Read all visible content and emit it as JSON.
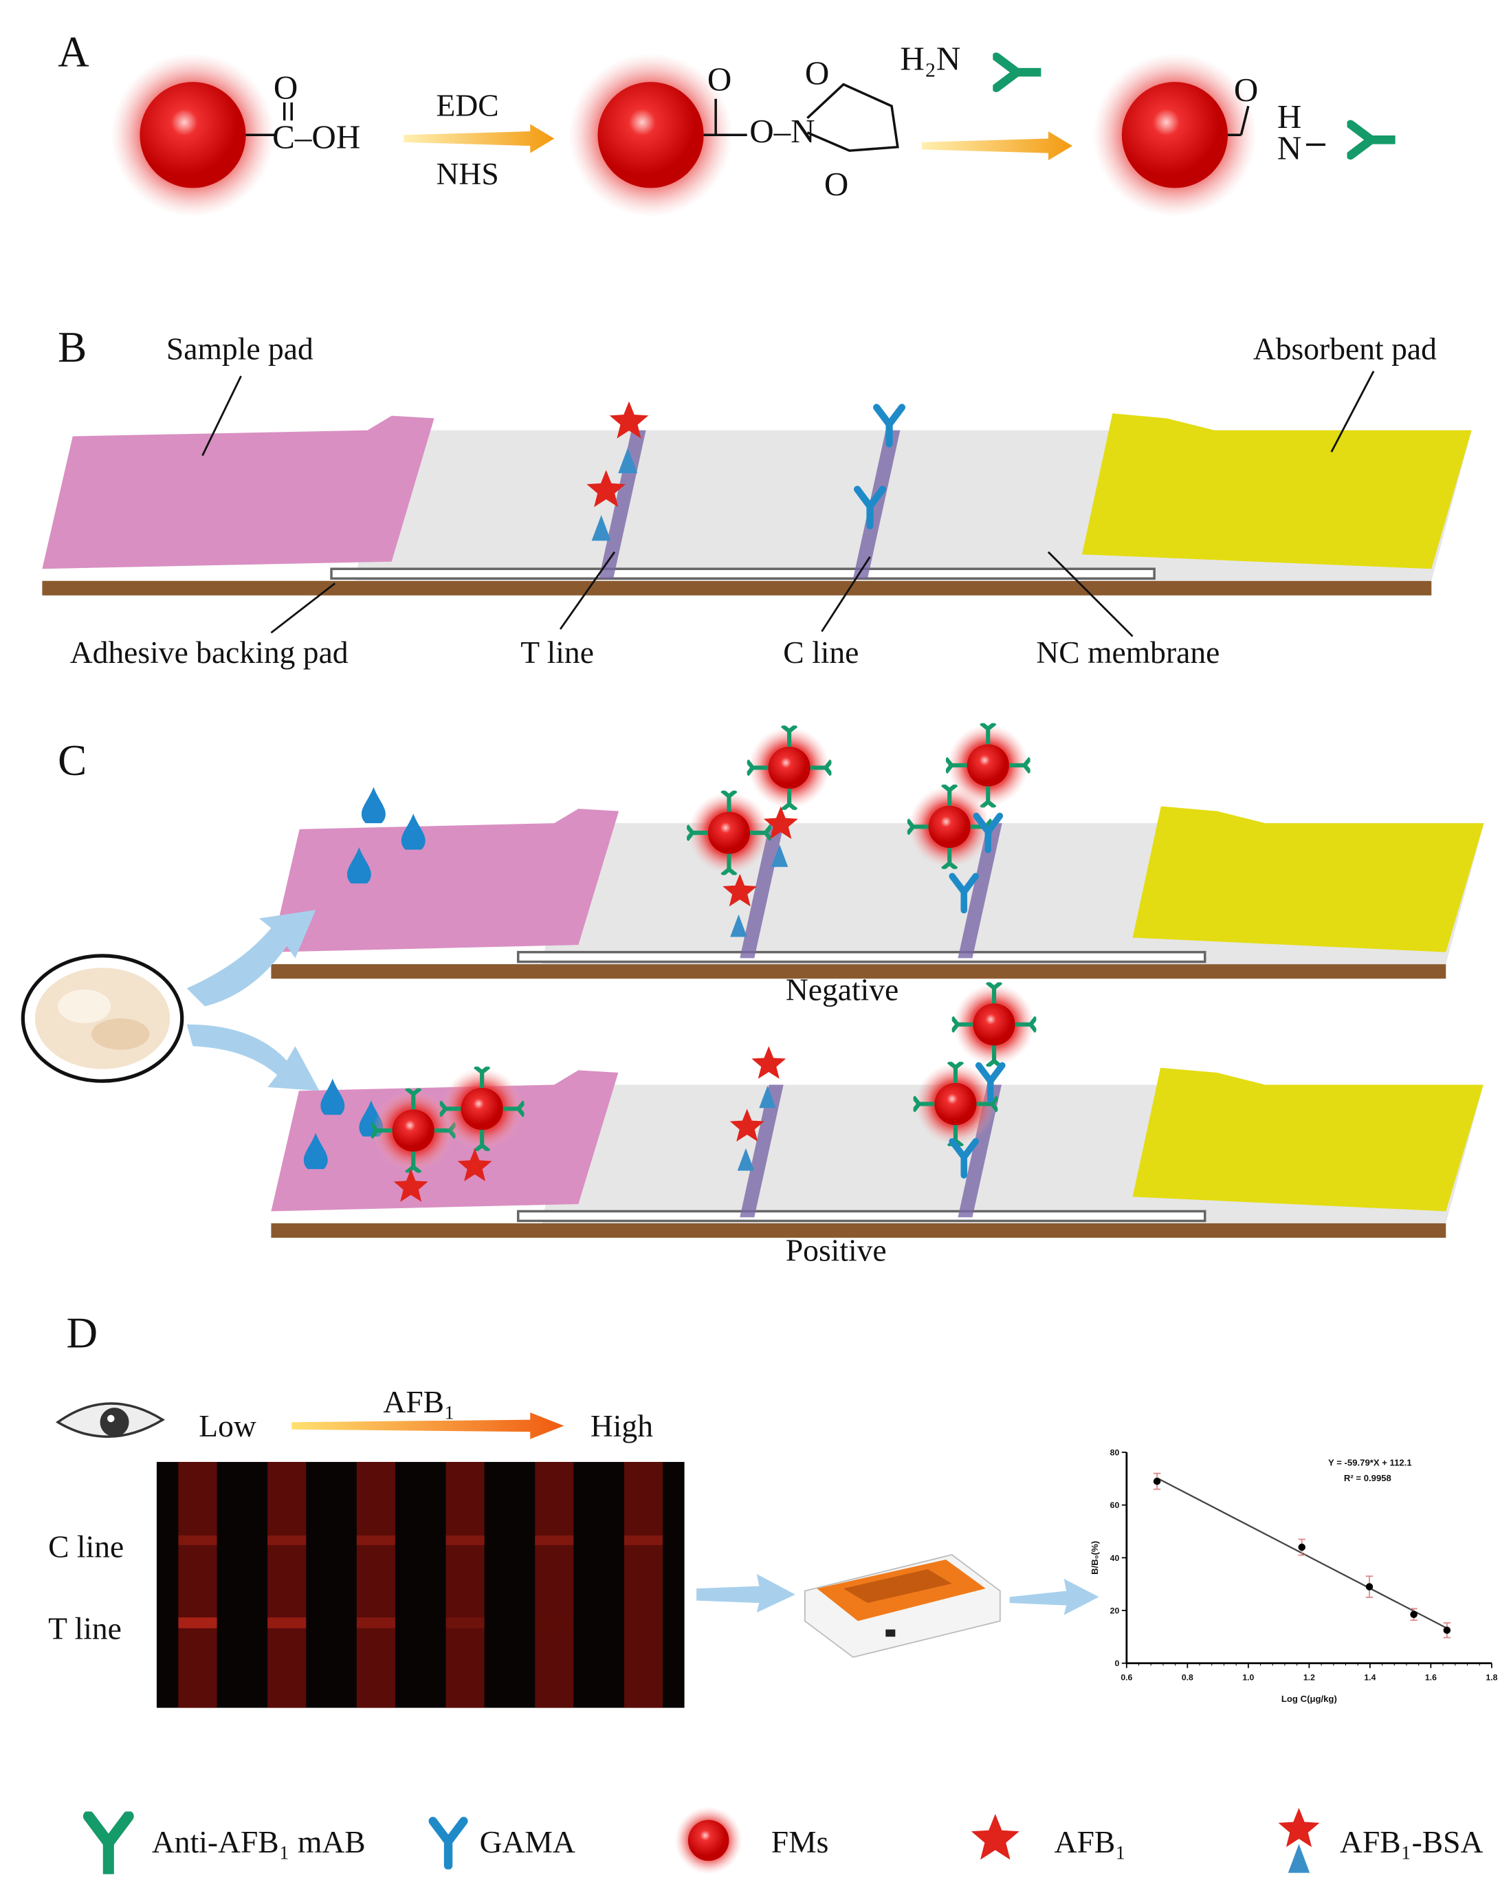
{
  "panels": {
    "a": "A",
    "b": "B",
    "c": "C",
    "d": "D"
  },
  "panel_a": {
    "carboxyl_o": "O",
    "carboxyl_group": "C–OH",
    "reagent_top": "EDC",
    "reagent_bottom": "NHS",
    "ester_o1": "O",
    "ester_link": "O–N",
    "ring_o_top": "O",
    "ring_o_bottom": "O",
    "amine": "H₂N",
    "amide_o": "O",
    "amide_h": "H",
    "amide_n": "N"
  },
  "panel_b": {
    "sample_pad": "Sample pad",
    "absorbent_pad": "Absorbent pad",
    "adhesive_backing_pad": "Adhesive backing pad",
    "t_line": "T line",
    "c_line": "C line",
    "nc_membrane": "NC membrane"
  },
  "panel_c": {
    "negative": "Negative",
    "positive": "Positive"
  },
  "panel_d": {
    "low": "Low",
    "analyte": "AFB₁",
    "high": "High",
    "c_line": "C line",
    "t_line": "T line",
    "strip_count": 6
  },
  "colors": {
    "sample_pad": "#d98fc2",
    "absorbent_pad": "#e3dc12",
    "membrane": "#e6e6e6",
    "backing": "#8a5a2e",
    "fm_red": "#e01010",
    "antibody_green": "#159a6a",
    "gama_blue": "#1e8bc8",
    "afb1_star": "#e0231b",
    "arrow_blue": "#a8d0ec"
  },
  "chart_data": {
    "type": "scatter",
    "xlabel": "Log C(μg/kg)",
    "ylabel": "B/B₀(%)",
    "xlim": [
      0.6,
      1.8
    ],
    "ylim": [
      0,
      80
    ],
    "xticks": [
      "0.6",
      "0.8",
      "1.0",
      "1.2",
      "1.4",
      "1.6",
      "1.8"
    ],
    "yticks": [
      "0",
      "20",
      "40",
      "60",
      "80"
    ],
    "points": [
      {
        "x": 0.7,
        "y": 69,
        "err": 3
      },
      {
        "x": 1.176,
        "y": 44,
        "err": 3
      },
      {
        "x": 1.398,
        "y": 29,
        "err": 4
      },
      {
        "x": 1.544,
        "y": 18.5,
        "err": 2.2
      },
      {
        "x": 1.653,
        "y": 12.5,
        "err": 2.8
      }
    ],
    "fit": {
      "slope": -59.79,
      "intercept": 112.1
    },
    "equation": "Y = -59.79*X + 112.1",
    "r_squared": "R² = 0.9958",
    "grid": false
  },
  "legend": [
    {
      "icon": "antibody-green-y",
      "label": "Anti-AFB₁ mAB"
    },
    {
      "icon": "gama-blue-y",
      "label": "GAMA"
    },
    {
      "icon": "fm-red-sphere",
      "label": "FMs"
    },
    {
      "icon": "red-star",
      "label": "AFB₁"
    },
    {
      "icon": "star-triangle",
      "label": "AFB₁-BSA"
    }
  ]
}
